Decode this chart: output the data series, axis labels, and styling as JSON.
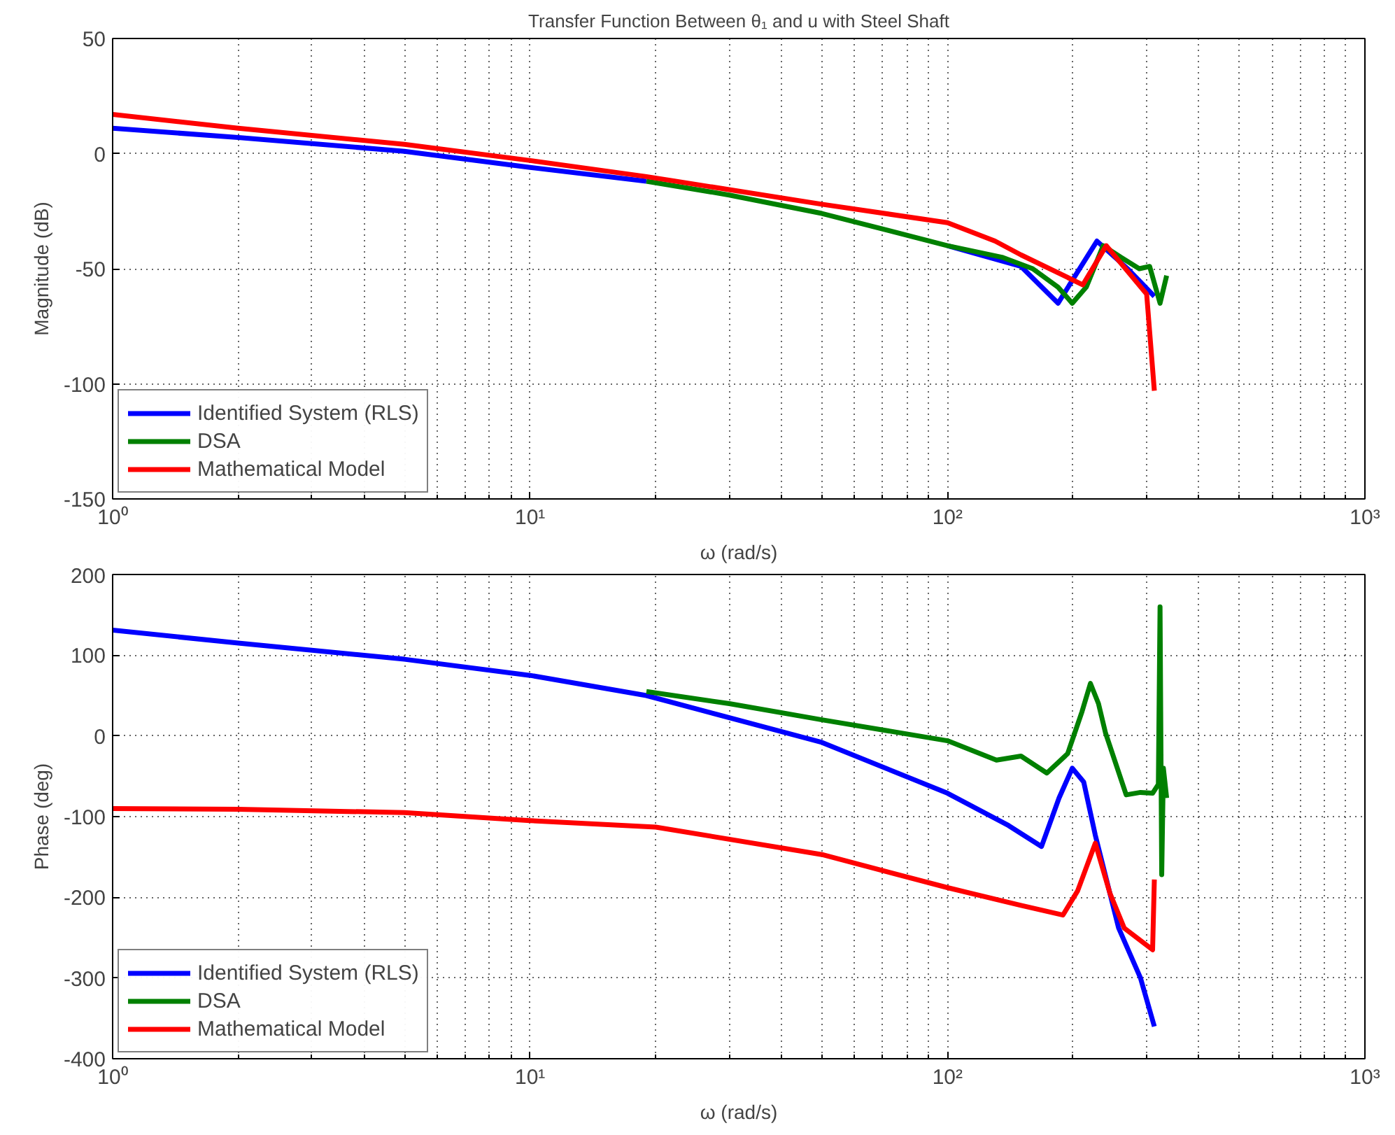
{
  "chart_data": [
    {
      "type": "line",
      "title": "Transfer Function Between θ₁ and u with Steel Shaft",
      "xlabel": "ω (rad/s)",
      "ylabel": "Magnitude (dB)",
      "log": "x",
      "grid": true,
      "legend": "bottom left",
      "line_style": "solid",
      "marker": "none",
      "xlim": [
        1,
        1000
      ],
      "xticks": [
        {
          "value": 1,
          "label": "10⁰"
        },
        {
          "value": 2,
          "label": null
        },
        {
          "value": 3,
          "label": null
        },
        {
          "value": 4,
          "label": null
        },
        {
          "value": 5,
          "label": null
        },
        {
          "value": 6,
          "label": null
        },
        {
          "value": 7,
          "label": null
        },
        {
          "value": 8,
          "label": null
        },
        {
          "value": 9,
          "label": null
        },
        {
          "value": 10,
          "label": "10¹"
        },
        {
          "value": 20,
          "label": null
        },
        {
          "value": 30,
          "label": null
        },
        {
          "value": 40,
          "label": null
        },
        {
          "value": 50,
          "label": null
        },
        {
          "value": 60,
          "label": null
        },
        {
          "value": 70,
          "label": null
        },
        {
          "value": 80,
          "label": null
        },
        {
          "value": 90,
          "label": null
        },
        {
          "value": 100,
          "label": "10²"
        },
        {
          "value": 200,
          "label": null
        },
        {
          "value": 300,
          "label": null
        },
        {
          "value": 400,
          "label": null
        },
        {
          "value": 500,
          "label": null
        },
        {
          "value": 600,
          "label": null
        },
        {
          "value": 700,
          "label": null
        },
        {
          "value": 800,
          "label": null
        },
        {
          "value": 900,
          "label": null
        },
        {
          "value": 1000,
          "label": "10³"
        }
      ],
      "ylim": [
        -150,
        50
      ],
      "yticks": [
        -150,
        -100,
        -50,
        0,
        50
      ],
      "series": [
        {
          "name": "Identified System (RLS)",
          "color": "#0000ff",
          "x": [
            1,
            2,
            5,
            10,
            19,
            50,
            100,
            150,
            184,
            228,
            270,
            313
          ],
          "values": [
            11,
            7,
            1,
            -6,
            -12,
            null,
            -40,
            -49,
            -65,
            -38,
            -50,
            -62
          ]
        },
        {
          "name": "DSA",
          "color": "#008000",
          "x": [
            19,
            30,
            50,
            100,
            135,
            160,
            184,
            199,
            215,
            236,
            260,
            288,
            305,
            323,
            335
          ],
          "values": [
            -12,
            -18,
            -26,
            -40,
            -45,
            -50,
            -58,
            -65,
            -58,
            -40,
            -45,
            -50,
            -49,
            -65,
            -53
          ]
        },
        {
          "name": "Mathematical Model",
          "color": "#ff0000",
          "x": [
            1,
            2,
            5,
            10,
            19,
            50,
            100,
            130,
            150,
            211,
            240,
            300,
            313
          ],
          "values": [
            17,
            11,
            4,
            -3,
            -10,
            -22,
            -30,
            -38,
            -44,
            -57,
            -40,
            -61,
            -103
          ]
        }
      ]
    },
    {
      "type": "line",
      "xlabel": "ω (rad/s)",
      "ylabel": "Phase (deg)",
      "log": "x",
      "grid": true,
      "legend": "bottom left",
      "line_style": "solid",
      "marker": "none",
      "xlim": [
        1,
        1000
      ],
      "xticks": [
        {
          "value": 1,
          "label": "10⁰"
        },
        {
          "value": 2,
          "label": null
        },
        {
          "value": 3,
          "label": null
        },
        {
          "value": 4,
          "label": null
        },
        {
          "value": 5,
          "label": null
        },
        {
          "value": 6,
          "label": null
        },
        {
          "value": 7,
          "label": null
        },
        {
          "value": 8,
          "label": null
        },
        {
          "value": 9,
          "label": null
        },
        {
          "value": 10,
          "label": "10¹"
        },
        {
          "value": 20,
          "label": null
        },
        {
          "value": 30,
          "label": null
        },
        {
          "value": 40,
          "label": null
        },
        {
          "value": 50,
          "label": null
        },
        {
          "value": 60,
          "label": null
        },
        {
          "value": 70,
          "label": null
        },
        {
          "value": 80,
          "label": null
        },
        {
          "value": 90,
          "label": null
        },
        {
          "value": 100,
          "label": "10²"
        },
        {
          "value": 200,
          "label": null
        },
        {
          "value": 300,
          "label": null
        },
        {
          "value": 400,
          "label": null
        },
        {
          "value": 500,
          "label": null
        },
        {
          "value": 600,
          "label": null
        },
        {
          "value": 700,
          "label": null
        },
        {
          "value": 800,
          "label": null
        },
        {
          "value": 900,
          "label": null
        },
        {
          "value": 1000,
          "label": "10³"
        }
      ],
      "ylim": [
        -400,
        200
      ],
      "yticks": [
        -400,
        -300,
        -200,
        -100,
        0,
        100,
        200
      ],
      "series": [
        {
          "name": "Identified System (RLS)",
          "color": "#0000ff",
          "x": [
            1,
            2,
            5,
            10,
            19,
            50,
            100,
            140,
            168,
            185,
            199,
            212,
            226,
            257,
            290,
            313
          ],
          "values": [
            131,
            115,
            95,
            75,
            50,
            -8,
            -71,
            -111,
            -137,
            -77,
            -40,
            -57,
            -123,
            -238,
            -300,
            -360
          ]
        },
        {
          "name": "DSA",
          "color": "#008000",
          "x": [
            19,
            30,
            50,
            100,
            131,
            150,
            173,
            194,
            210,
            220,
            230,
            239,
            268,
            290,
            310,
            320,
            323,
            326,
            329,
            335
          ],
          "values": [
            55,
            40,
            20,
            -6,
            -30,
            -25,
            -46,
            -22,
            30,
            65,
            40,
            4,
            -73,
            -70,
            -71,
            -60,
            160,
            -172,
            -40,
            -77
          ]
        },
        {
          "name": "Mathematical Model",
          "color": "#ff0000",
          "x": [
            1,
            2,
            5,
            10,
            20,
            50,
            100,
            150,
            189,
            205,
            226,
            245,
            265,
            310,
            313
          ],
          "values": [
            -90,
            -91,
            -95,
            -105,
            -113,
            -147,
            -188,
            -210,
            -222,
            -192,
            -133,
            -195,
            -238,
            -265,
            -178
          ]
        }
      ]
    }
  ]
}
